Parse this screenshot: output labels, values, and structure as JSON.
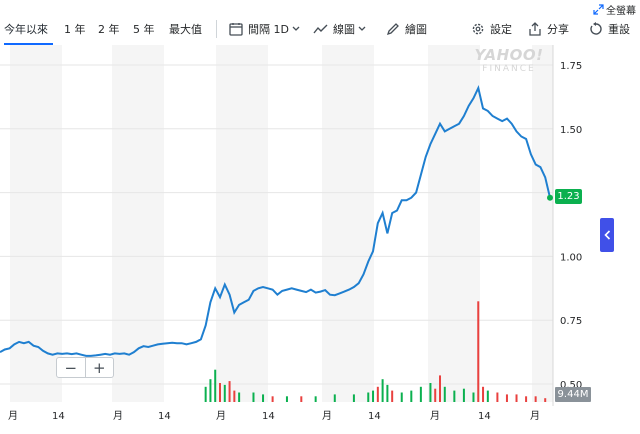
{
  "toolbar": {
    "ranges": [
      {
        "label": "今年以來",
        "active": true
      },
      {
        "label": "1 年"
      },
      {
        "label": "2 年"
      },
      {
        "label": "5 年"
      },
      {
        "label": "最大值"
      }
    ],
    "interval_prefix": "間隔",
    "interval_value": "1D",
    "chart_type_label": "線圖",
    "draw_label": "繪圖",
    "settings_label": "設定",
    "share_label": "分享",
    "reset_label": "重設",
    "fullscreen_label": "全螢幕"
  },
  "watermark": {
    "line1": "YAHOO!",
    "line2": "FINANCE"
  },
  "current_price": "1.23",
  "volume_label": "9.44M",
  "zoom": {
    "minus": "−",
    "plus": "+"
  },
  "colors": {
    "line": "#1f7fd0",
    "price_tag": "#0bb04f",
    "vol_up": "#0bb04f",
    "vol_down": "#e9413f",
    "band": "#f5f5f5"
  },
  "chart_data": {
    "type": "line",
    "y_ticks": [
      "1.75",
      "1.50",
      "1.25",
      "1.00",
      "0.75",
      "0.50"
    ],
    "ylim": [
      0.5,
      1.75
    ],
    "x_ticks": [
      "月",
      "14",
      "月",
      "14",
      "月",
      "14",
      "月",
      "14",
      "月",
      "14",
      "月"
    ],
    "values": [
      0.625,
      0.635,
      0.64,
      0.655,
      0.665,
      0.66,
      0.665,
      0.65,
      0.645,
      0.63,
      0.62,
      0.615,
      0.62,
      0.618,
      0.62,
      0.617,
      0.62,
      0.615,
      0.61,
      0.61,
      0.612,
      0.615,
      0.618,
      0.615,
      0.62,
      0.618,
      0.62,
      0.615,
      0.625,
      0.64,
      0.648,
      0.645,
      0.65,
      0.655,
      0.658,
      0.66,
      0.662,
      0.66,
      0.66,
      0.655,
      0.66,
      0.665,
      0.675,
      0.73,
      0.82,
      0.875,
      0.84,
      0.89,
      0.85,
      0.78,
      0.81,
      0.82,
      0.83,
      0.865,
      0.875,
      0.88,
      0.875,
      0.87,
      0.85,
      0.865,
      0.87,
      0.875,
      0.87,
      0.865,
      0.86,
      0.87,
      0.858,
      0.862,
      0.868,
      0.85,
      0.848,
      0.855,
      0.862,
      0.87,
      0.88,
      0.895,
      0.93,
      0.98,
      1.02,
      1.13,
      1.17,
      1.09,
      1.17,
      1.18,
      1.22,
      1.22,
      1.23,
      1.25,
      1.32,
      1.39,
      1.44,
      1.48,
      1.52,
      1.49,
      1.5,
      1.51,
      1.52,
      1.55,
      1.59,
      1.62,
      1.66,
      1.58,
      1.57,
      1.55,
      1.54,
      1.53,
      1.54,
      1.52,
      1.49,
      1.47,
      1.46,
      1.4,
      1.36,
      1.35,
      1.31,
      1.23
    ],
    "volume": [
      {
        "i": 43,
        "v": 0.08,
        "up": true
      },
      {
        "i": 44,
        "v": 0.12,
        "up": true
      },
      {
        "i": 45,
        "v": 0.17,
        "up": true
      },
      {
        "i": 46,
        "v": 0.1,
        "up": false
      },
      {
        "i": 47,
        "v": 0.09,
        "up": true
      },
      {
        "i": 48,
        "v": 0.11,
        "up": false
      },
      {
        "i": 49,
        "v": 0.06,
        "up": false
      },
      {
        "i": 50,
        "v": 0.05,
        "up": true
      },
      {
        "i": 53,
        "v": 0.05,
        "up": true
      },
      {
        "i": 55,
        "v": 0.04,
        "up": true
      },
      {
        "i": 57,
        "v": 0.03,
        "up": false
      },
      {
        "i": 60,
        "v": 0.03,
        "up": true
      },
      {
        "i": 63,
        "v": 0.03,
        "up": false
      },
      {
        "i": 66,
        "v": 0.03,
        "up": true
      },
      {
        "i": 70,
        "v": 0.04,
        "up": true
      },
      {
        "i": 74,
        "v": 0.04,
        "up": true
      },
      {
        "i": 77,
        "v": 0.05,
        "up": true
      },
      {
        "i": 78,
        "v": 0.06,
        "up": true
      },
      {
        "i": 79,
        "v": 0.08,
        "up": false
      },
      {
        "i": 80,
        "v": 0.12,
        "up": true
      },
      {
        "i": 81,
        "v": 0.09,
        "up": true
      },
      {
        "i": 82,
        "v": 0.06,
        "up": false
      },
      {
        "i": 84,
        "v": 0.05,
        "up": true
      },
      {
        "i": 86,
        "v": 0.06,
        "up": true
      },
      {
        "i": 88,
        "v": 0.08,
        "up": true
      },
      {
        "i": 90,
        "v": 0.1,
        "up": true
      },
      {
        "i": 91,
        "v": 0.07,
        "up": false
      },
      {
        "i": 92,
        "v": 0.14,
        "up": false
      },
      {
        "i": 93,
        "v": 0.08,
        "up": true
      },
      {
        "i": 95,
        "v": 0.06,
        "up": true
      },
      {
        "i": 97,
        "v": 0.07,
        "up": true
      },
      {
        "i": 99,
        "v": 0.05,
        "up": true
      },
      {
        "i": 100,
        "v": 0.53,
        "up": false
      },
      {
        "i": 101,
        "v": 0.08,
        "up": false
      },
      {
        "i": 102,
        "v": 0.06,
        "up": true
      },
      {
        "i": 104,
        "v": 0.05,
        "up": false
      },
      {
        "i": 106,
        "v": 0.04,
        "up": false
      },
      {
        "i": 108,
        "v": 0.04,
        "up": false
      },
      {
        "i": 110,
        "v": 0.03,
        "up": false
      },
      {
        "i": 112,
        "v": 0.03,
        "up": false
      },
      {
        "i": 114,
        "v": 0.02,
        "up": false
      }
    ]
  }
}
